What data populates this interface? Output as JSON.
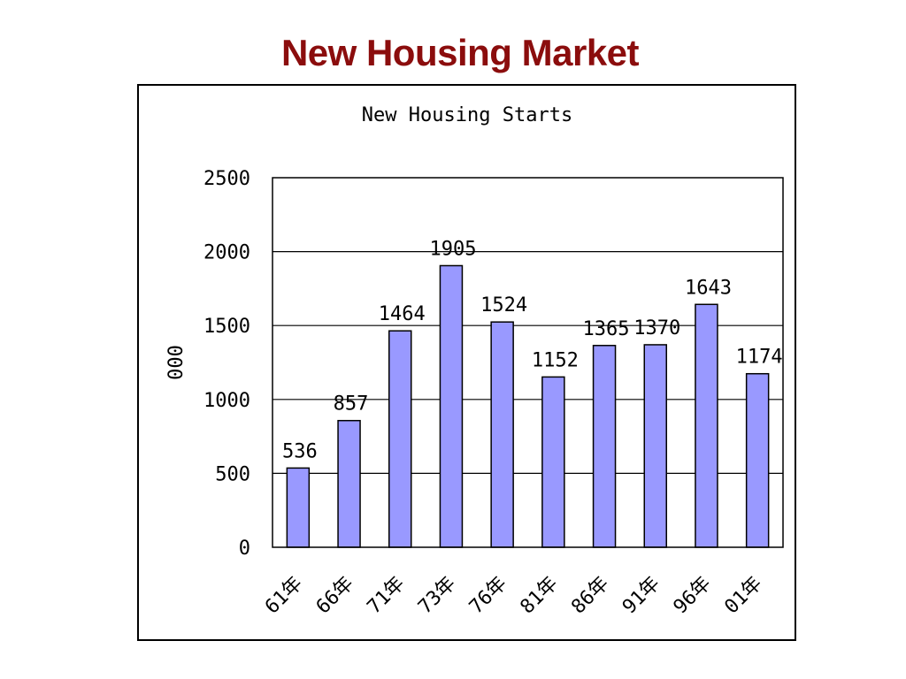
{
  "slide": {
    "title": "New Housing Market"
  },
  "chart_data": {
    "type": "bar",
    "title": "New Housing Starts",
    "xlabel": "",
    "ylabel": "000",
    "categories": [
      "61年",
      "66年",
      "71年",
      "73年",
      "76年",
      "81年",
      "86年",
      "91年",
      "96年",
      "01年"
    ],
    "values": [
      536,
      857,
      1464,
      1905,
      1524,
      1152,
      1365,
      1370,
      1643,
      1174
    ],
    "data_labels": [
      "536",
      "857",
      "1464",
      "1905",
      "1524",
      "1152",
      "1365",
      "1370",
      "1643",
      "1174"
    ],
    "ylim": [
      0,
      2500
    ],
    "yticks": [
      0,
      500,
      1000,
      1500,
      2000,
      2500
    ],
    "ytick_labels": [
      "0",
      "500",
      "1000",
      "1500",
      "2000",
      "2500"
    ],
    "grid": true,
    "legend": "none",
    "colors": {
      "bar_fill": "#9999ff",
      "bar_stroke": "#000000",
      "gridline": "#000000",
      "title": "#8b0d0d"
    }
  }
}
